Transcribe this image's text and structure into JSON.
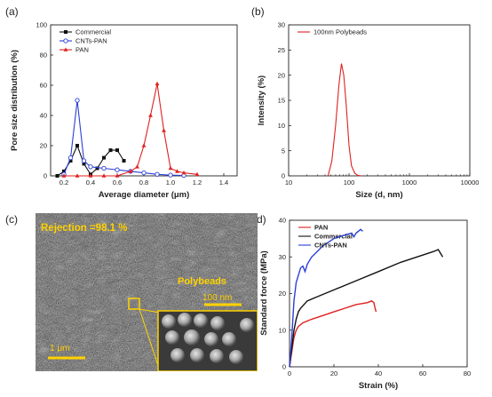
{
  "panels": {
    "a": "(a)",
    "b": "(b)",
    "c": "(c)",
    "d": "(d)"
  },
  "chart_data": [
    {
      "id": "a",
      "type": "line",
      "xlabel": "Average diameter (μm)",
      "ylabel": "Pore size distribution (%)",
      "xlim": [
        0.1,
        1.5
      ],
      "ylim": [
        0,
        100
      ],
      "xticks": [
        "0.2",
        "0.4",
        "0.6",
        "0.8",
        "1.0",
        "1.2",
        "1.4"
      ],
      "xtick_values": [
        0.2,
        0.4,
        0.6,
        0.8,
        1.0,
        1.2,
        1.4
      ],
      "yticks": [
        "0",
        "20",
        "40",
        "60",
        "80",
        "100"
      ],
      "ytick_values": [
        0,
        20,
        40,
        60,
        80,
        100
      ],
      "legend_position": "top-left",
      "series": [
        {
          "name": "Commercial",
          "color": "#111111",
          "marker": "square",
          "x": [
            0.15,
            0.2,
            0.25,
            0.3,
            0.35,
            0.4,
            0.45,
            0.5,
            0.55,
            0.6,
            0.65
          ],
          "y": [
            0,
            3,
            10,
            20,
            8,
            1,
            5,
            12,
            17,
            17,
            10
          ]
        },
        {
          "name": "CNTs-PAN",
          "color": "#2a3fd6",
          "marker": "circle-open",
          "x": [
            0.2,
            0.25,
            0.3,
            0.35,
            0.4,
            0.5,
            0.6,
            0.7,
            0.8,
            0.9,
            1.0,
            1.1
          ],
          "y": [
            1,
            12,
            50,
            10,
            6,
            5,
            4,
            3,
            2,
            1,
            0.5,
            0.3
          ]
        },
        {
          "name": "PAN",
          "color": "#e02020",
          "marker": "triangle",
          "x": [
            0.2,
            0.3,
            0.4,
            0.5,
            0.6,
            0.7,
            0.75,
            0.8,
            0.85,
            0.9,
            0.95,
            1.0,
            1.05,
            1.1,
            1.2
          ],
          "y": [
            0,
            0,
            0,
            0,
            0,
            3,
            6,
            20,
            40,
            61,
            30,
            5,
            3,
            2,
            1
          ]
        }
      ]
    },
    {
      "id": "b",
      "type": "line",
      "xscale": "log",
      "xlabel": "Size (d, nm)",
      "ylabel": "Intensity (%)",
      "xlim": [
        10,
        10000
      ],
      "ylim": [
        0,
        30
      ],
      "xticks": [
        "10",
        "100",
        "1000",
        "10000"
      ],
      "xtick_values": [
        10,
        100,
        1000,
        10000
      ],
      "yticks": [
        "0",
        "5",
        "10",
        "15",
        "20",
        "25",
        "30"
      ],
      "ytick_values": [
        0,
        5,
        10,
        15,
        20,
        25,
        30
      ],
      "legend_position": "top-left",
      "series": [
        {
          "name": "100nm Polybeads",
          "color": "#e02020",
          "x": [
            45,
            52,
            60,
            68,
            75,
            82,
            90,
            100,
            110,
            125,
            140,
            160
          ],
          "y": [
            0,
            3,
            10,
            18,
            22.3,
            20,
            14,
            6,
            2,
            0.5,
            0.1,
            0
          ]
        }
      ]
    },
    {
      "id": "d",
      "type": "line",
      "xlabel": "Strain (%)",
      "ylabel": "Standard force (MPa)",
      "xlim": [
        0,
        80
      ],
      "ylim": [
        0,
        40
      ],
      "xticks": [
        "0",
        "20",
        "40",
        "60",
        "80"
      ],
      "xtick_values": [
        0,
        20,
        40,
        60,
        80
      ],
      "yticks": [
        "0",
        "10",
        "20",
        "30",
        "40"
      ],
      "ytick_values": [
        0,
        10,
        20,
        30,
        40
      ],
      "legend_position": "top-left",
      "series": [
        {
          "name": "PAN",
          "color": "#e02020",
          "x": [
            0,
            1,
            2,
            3,
            4,
            6,
            10,
            15,
            20,
            25,
            30,
            35,
            37,
            38,
            38.5,
            39
          ],
          "y": [
            0,
            4,
            8,
            10,
            11,
            12,
            13,
            14,
            15,
            16,
            17,
            17.5,
            18,
            17.5,
            16,
            15
          ]
        },
        {
          "name": "Commercial",
          "color": "#111111",
          "x": [
            0,
            1,
            2,
            3,
            4,
            5,
            8,
            12,
            20,
            30,
            40,
            50,
            60,
            65,
            67,
            68,
            69
          ],
          "y": [
            0,
            5,
            10,
            13,
            15,
            16,
            18,
            19,
            21,
            23.5,
            26,
            28.5,
            30.5,
            31.5,
            32,
            31,
            30
          ]
        },
        {
          "name": "CNTs-PAN",
          "color": "#2a3fd6",
          "x": [
            0,
            1,
            2,
            3,
            4,
            5,
            6,
            7,
            8,
            10,
            15,
            20,
            25,
            28,
            29,
            30,
            31,
            32,
            33
          ],
          "y": [
            0,
            8,
            18,
            23,
            25,
            27,
            27.5,
            26,
            28,
            30,
            33,
            35,
            36,
            36.5,
            35.5,
            36.5,
            37,
            37.5,
            37
          ]
        }
      ]
    }
  ],
  "sem": {
    "rejection_text": "Rejection =98.1 %",
    "polybeads_label": "Polybeads",
    "inset_scale": "100 nm",
    "main_scale": "1 μm"
  }
}
